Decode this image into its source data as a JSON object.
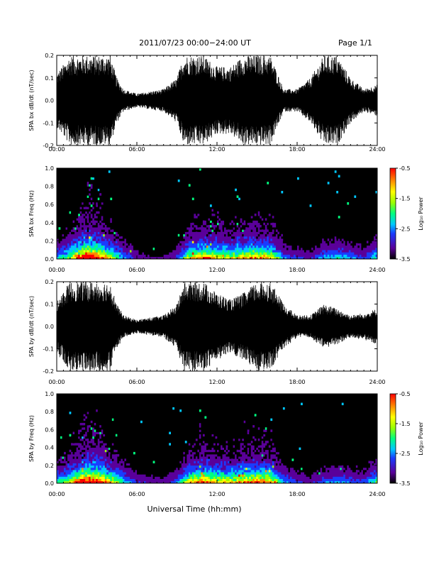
{
  "header": {
    "title": "2011/07/23  00:00−24:00 UT",
    "page": "Page 1/1"
  },
  "xaxis": {
    "label": "Universal Time (hh:mm)",
    "ticks": [
      "00:00",
      "06:00",
      "12:00",
      "18:00",
      "24:00"
    ],
    "range_hours": [
      0,
      24
    ]
  },
  "colorbar": {
    "label": "Log₁₀ Power",
    "ticks": [
      "-0.5",
      "-1.5",
      "-2.5",
      "-3.5"
    ],
    "range": [
      -3.5,
      -0.5
    ],
    "colors": [
      "#000000",
      "#5a009a",
      "#1a3cff",
      "#00c8ff",
      "#00ff80",
      "#9aff00",
      "#ffff00",
      "#ff8c00",
      "#ff0000"
    ]
  },
  "chart_data": [
    {
      "type": "line",
      "ylabel": "SPA bx dB/dt (nT/sec)",
      "ylim": [
        -0.2,
        0.2
      ],
      "yticks": [
        "0.2",
        "0.1",
        "0.0",
        "-0.1",
        "-0.2"
      ],
      "x": [
        0,
        1,
        1.5,
        2,
        2.5,
        3,
        3.5,
        4,
        4.5,
        5,
        6,
        7,
        8,
        9,
        9.5,
        10,
        11,
        12,
        13,
        14,
        15,
        16,
        17,
        18,
        19,
        20,
        21,
        22,
        23,
        24
      ],
      "amplitude": [
        0.12,
        0.2,
        0.2,
        0.2,
        0.2,
        0.2,
        0.2,
        0.2,
        0.1,
        0.05,
        0.03,
        0.04,
        0.05,
        0.1,
        0.2,
        0.2,
        0.2,
        0.15,
        0.15,
        0.2,
        0.2,
        0.2,
        0.05,
        0.05,
        0.1,
        0.2,
        0.2,
        0.1,
        0.05,
        0.07
      ]
    },
    {
      "type": "heatmap",
      "ylabel": "SPA bx Freq (Hz)",
      "ylim": [
        0.0,
        1.0
      ],
      "yticks": [
        "1.0",
        "0.8",
        "0.6",
        "0.4",
        "0.2",
        "0.0"
      ],
      "activity_x": [
        0,
        1,
        2,
        2.5,
        3,
        4,
        5,
        6,
        7,
        8,
        9,
        10,
        11,
        12,
        13,
        14,
        15,
        16,
        17,
        18,
        19,
        20,
        21,
        22,
        23,
        24
      ],
      "activity_level": [
        0.3,
        0.5,
        0.9,
        0.95,
        0.85,
        0.6,
        0.3,
        0.15,
        0.1,
        0.1,
        0.2,
        0.6,
        0.7,
        0.6,
        0.55,
        0.65,
        0.7,
        0.65,
        0.25,
        0.2,
        0.15,
        0.3,
        0.35,
        0.3,
        0.2,
        0.4
      ]
    },
    {
      "type": "line",
      "ylabel": "SPA by dB/dt (nT/sec)",
      "ylim": [
        -0.2,
        0.2
      ],
      "yticks": [
        "0.2",
        "0.1",
        "0.0",
        "-0.1",
        "-0.2"
      ],
      "x": [
        0,
        1,
        1.5,
        2,
        2.5,
        3,
        3.5,
        4,
        4.5,
        5,
        6,
        7,
        8,
        9,
        9.5,
        10,
        11,
        12,
        13,
        14,
        15,
        16,
        17,
        18,
        19,
        20,
        21,
        22,
        23,
        24
      ],
      "amplitude": [
        0.12,
        0.2,
        0.2,
        0.2,
        0.2,
        0.2,
        0.2,
        0.2,
        0.1,
        0.05,
        0.03,
        0.04,
        0.05,
        0.1,
        0.2,
        0.2,
        0.2,
        0.15,
        0.12,
        0.15,
        0.2,
        0.2,
        0.1,
        0.05,
        0.05,
        0.1,
        0.08,
        0.05,
        0.06,
        0.08
      ]
    },
    {
      "type": "heatmap",
      "ylabel": "SPA by Freq (Hz)",
      "ylim": [
        0.0,
        1.0
      ],
      "yticks": [
        "1.0",
        "0.8",
        "0.6",
        "0.4",
        "0.2",
        "0.0"
      ],
      "activity_x": [
        0,
        1,
        2,
        2.5,
        3,
        4,
        5,
        6,
        7,
        8,
        9,
        10,
        11,
        12,
        13,
        14,
        15,
        16,
        17,
        18,
        19,
        20,
        21,
        22,
        23,
        24
      ],
      "activity_level": [
        0.35,
        0.55,
        0.95,
        0.95,
        0.9,
        0.65,
        0.35,
        0.2,
        0.15,
        0.12,
        0.25,
        0.65,
        0.75,
        0.65,
        0.6,
        0.7,
        0.75,
        0.7,
        0.3,
        0.2,
        0.15,
        0.25,
        0.3,
        0.25,
        0.2,
        0.45
      ]
    }
  ]
}
